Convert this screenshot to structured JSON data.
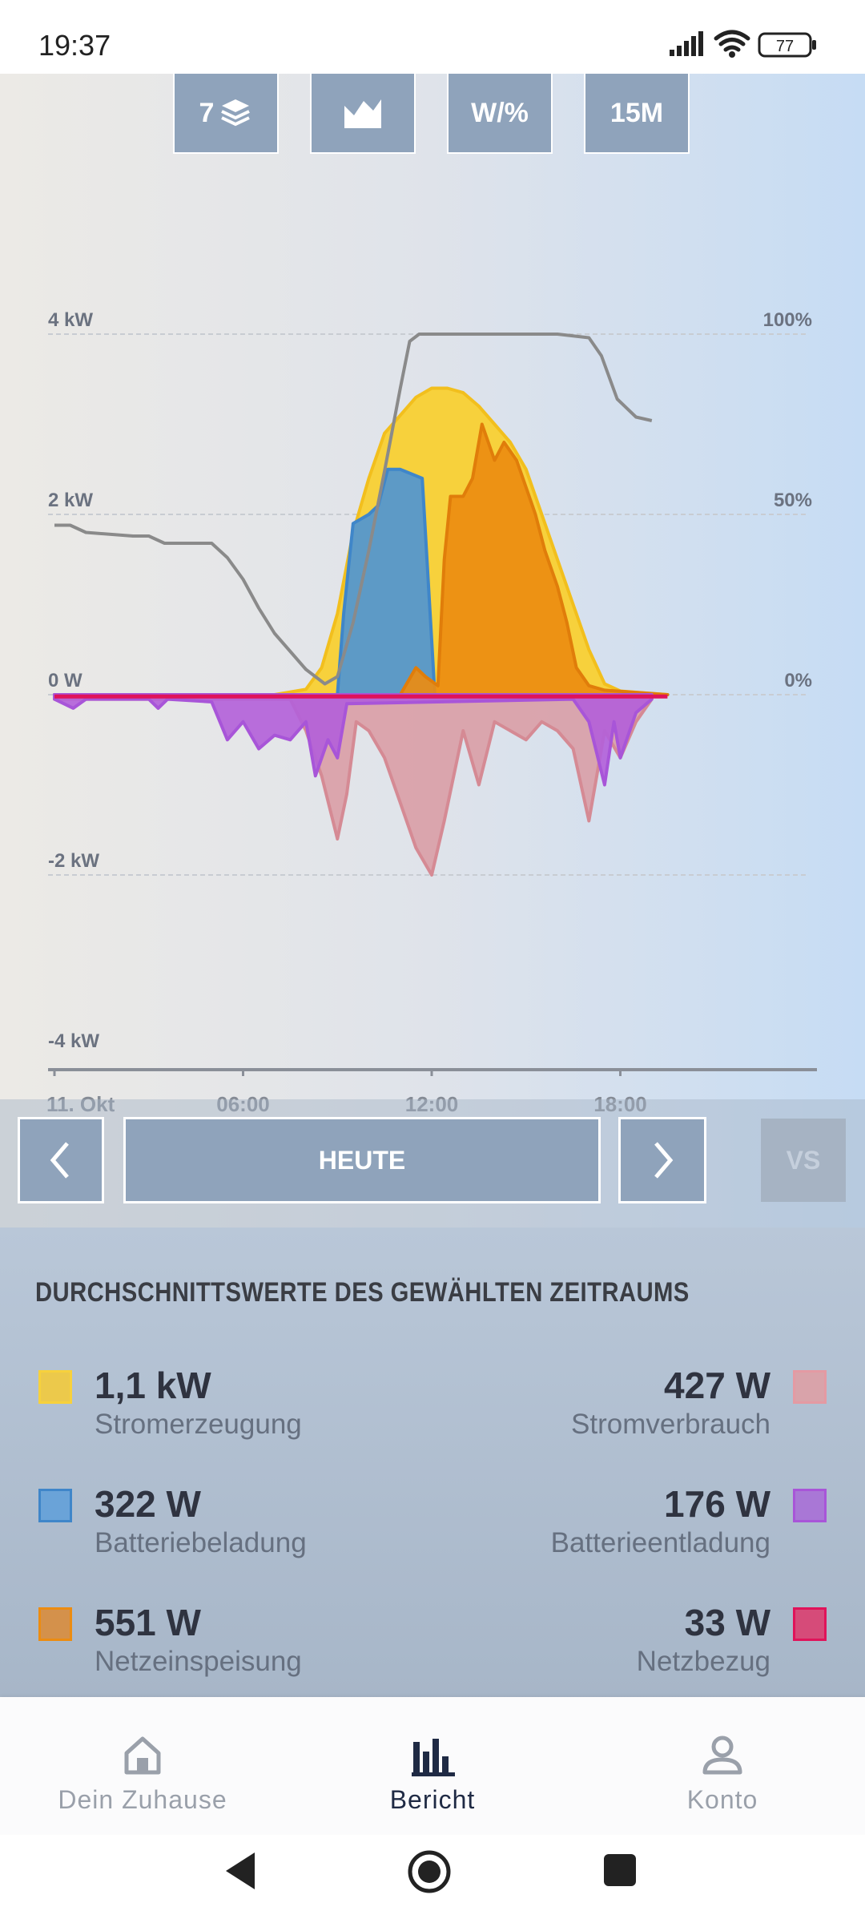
{
  "status_bar": {
    "time": "19:37",
    "battery": "77"
  },
  "toolbar": {
    "layers_count": "7",
    "unit_label": "W/%",
    "interval_label": "15M",
    "layers_icon": "layers-icon",
    "area_chart_icon": "area-chart-icon"
  },
  "chart_data": {
    "type": "area",
    "x_tick_labels": [
      "11. Okt",
      "06:00",
      "12:00",
      "18:00"
    ],
    "y_left_tick_labels": [
      "4 kW",
      "2 kW",
      "0 W",
      "-2 kW",
      "-4 kW"
    ],
    "y_right_tick_labels": [
      "100%",
      "50%",
      "0%"
    ],
    "x_range_hours": [
      0,
      24
    ],
    "y_left_range_w": [
      -4000,
      4000
    ],
    "y_right_range_pct": [
      0,
      100
    ],
    "grid": true,
    "series": [
      {
        "name": "Stromerzeugung",
        "color": "#f7d13c",
        "values_w": [
          [
            0,
            0
          ],
          [
            7,
            0
          ],
          [
            8,
            60
          ],
          [
            8.5,
            300
          ],
          [
            9,
            900
          ],
          [
            9.5,
            1800
          ],
          [
            10,
            2400
          ],
          [
            10.5,
            2900
          ],
          [
            11,
            3100
          ],
          [
            11.5,
            3300
          ],
          [
            12,
            3400
          ],
          [
            12.5,
            3400
          ],
          [
            13,
            3350
          ],
          [
            13.5,
            3200
          ],
          [
            14,
            3000
          ],
          [
            14.5,
            2800
          ],
          [
            15,
            2500
          ],
          [
            15.5,
            2000
          ],
          [
            16,
            1500
          ],
          [
            16.5,
            1000
          ],
          [
            17,
            500
          ],
          [
            17.5,
            120
          ],
          [
            18,
            40
          ],
          [
            19.5,
            0
          ]
        ]
      },
      {
        "name": "Batteriebeladung",
        "color": "#5b9bd1",
        "values_w": [
          [
            0,
            0
          ],
          [
            9,
            0
          ],
          [
            9.2,
            900
          ],
          [
            9.5,
            1900
          ],
          [
            10,
            2000
          ],
          [
            10.3,
            2100
          ],
          [
            10.6,
            2500
          ],
          [
            11,
            2500
          ],
          [
            11.7,
            2400
          ],
          [
            12,
            600
          ],
          [
            12.1,
            0
          ],
          [
            19.5,
            0
          ]
        ]
      },
      {
        "name": "Netzeinspeisung",
        "color": "#ec8c11",
        "values_w": [
          [
            0,
            0
          ],
          [
            11,
            0
          ],
          [
            11.5,
            300
          ],
          [
            11.8,
            200
          ],
          [
            12.2,
            100
          ],
          [
            12.4,
            1500
          ],
          [
            12.6,
            2200
          ],
          [
            13,
            2200
          ],
          [
            13.3,
            2400
          ],
          [
            13.6,
            3000
          ],
          [
            14,
            2600
          ],
          [
            14.3,
            2800
          ],
          [
            14.7,
            2600
          ],
          [
            15,
            2300
          ],
          [
            15.3,
            2000
          ],
          [
            15.6,
            1600
          ],
          [
            16,
            1200
          ],
          [
            16.3,
            800
          ],
          [
            16.6,
            300
          ],
          [
            17,
            100
          ],
          [
            17.5,
            50
          ],
          [
            19.5,
            0
          ]
        ]
      },
      {
        "name": "Stromverbrauch",
        "color": "#e49aa3",
        "values_w": [
          [
            0,
            -50
          ],
          [
            7.5,
            -50
          ],
          [
            8,
            -400
          ],
          [
            8.5,
            -900
          ],
          [
            9,
            -1600
          ],
          [
            9.3,
            -1100
          ],
          [
            9.6,
            -300
          ],
          [
            10,
            -400
          ],
          [
            10.5,
            -700
          ],
          [
            11,
            -1200
          ],
          [
            11.5,
            -1700
          ],
          [
            12,
            -2000
          ],
          [
            12.4,
            -1400
          ],
          [
            13,
            -400
          ],
          [
            13.5,
            -1000
          ],
          [
            14,
            -300
          ],
          [
            14.5,
            -400
          ],
          [
            15,
            -500
          ],
          [
            15.5,
            -300
          ],
          [
            16,
            -400
          ],
          [
            16.5,
            -600
          ],
          [
            17,
            -1400
          ],
          [
            17.5,
            -400
          ],
          [
            18,
            -700
          ],
          [
            18.5,
            -300
          ],
          [
            19,
            -50
          ]
        ]
      },
      {
        "name": "Batterieentladung",
        "color": "#a855d8",
        "values_w": [
          [
            0,
            -50
          ],
          [
            0.6,
            -150
          ],
          [
            1,
            -50
          ],
          [
            3,
            -50
          ],
          [
            3.3,
            -150
          ],
          [
            3.6,
            -50
          ],
          [
            5,
            -80
          ],
          [
            5.5,
            -500
          ],
          [
            6,
            -300
          ],
          [
            6.5,
            -600
          ],
          [
            7,
            -450
          ],
          [
            7.5,
            -500
          ],
          [
            8,
            -300
          ],
          [
            8.3,
            -900
          ],
          [
            8.7,
            -500
          ],
          [
            9,
            -700
          ],
          [
            9.3,
            -100
          ],
          [
            16.5,
            -50
          ],
          [
            17,
            -300
          ],
          [
            17.5,
            -1000
          ],
          [
            17.8,
            -300
          ],
          [
            18,
            -700
          ],
          [
            18.5,
            -200
          ],
          [
            19,
            -50
          ]
        ]
      },
      {
        "name": "Netzbezug",
        "color": "#e0135a",
        "values_w": [
          [
            0,
            -20
          ],
          [
            19.5,
            -20
          ]
        ]
      },
      {
        "name": "Batterieladestand",
        "color": "#8a8a8a",
        "unit": "%",
        "values_pct": [
          [
            0,
            47
          ],
          [
            0.5,
            47
          ],
          [
            1,
            45
          ],
          [
            2.5,
            44
          ],
          [
            3,
            44
          ],
          [
            3.5,
            42
          ],
          [
            5,
            42
          ],
          [
            5.5,
            38
          ],
          [
            6,
            32
          ],
          [
            6.5,
            24
          ],
          [
            7,
            17
          ],
          [
            7.5,
            12
          ],
          [
            8,
            7
          ],
          [
            8.6,
            3
          ],
          [
            9,
            5
          ],
          [
            9.5,
            20
          ],
          [
            10,
            40
          ],
          [
            10.5,
            62
          ],
          [
            11,
            85
          ],
          [
            11.3,
            98
          ],
          [
            11.6,
            100
          ],
          [
            16,
            100
          ],
          [
            17,
            99
          ],
          [
            17.4,
            94
          ],
          [
            17.9,
            82
          ],
          [
            18.5,
            77
          ],
          [
            19,
            76
          ]
        ]
      }
    ]
  },
  "date_nav": {
    "period_label": "HEUTE",
    "vs_label": "VS"
  },
  "stats": {
    "title": "DURCHSCHNITTSWERTE DES GEWÄHLTEN ZEITRAUMS",
    "items": [
      {
        "value": "1,1 kW",
        "label": "Stromerzeugung",
        "color": "#ecc94b",
        "border": "#f7d13c"
      },
      {
        "value": "427 W",
        "label": "Stromverbrauch",
        "color": "#d9a3aa",
        "border": "#e49aa3"
      },
      {
        "value": "322 W",
        "label": "Batteriebeladung",
        "color": "#6aa3d8",
        "border": "#3f86c9"
      },
      {
        "value": "176 W",
        "label": "Batterieentladung",
        "color": "#a977d6",
        "border": "#a855d8"
      },
      {
        "value": "551 W",
        "label": "Netzeinspeisung",
        "color": "#d4914b",
        "border": "#ec8c11"
      },
      {
        "value": "33 W",
        "label": "Netzbezug",
        "color": "#d64b79",
        "border": "#e0135a"
      }
    ]
  },
  "bottom_nav": {
    "items": [
      {
        "label": "Dein Zuhause",
        "icon": "home-icon",
        "active": false
      },
      {
        "label": "Bericht",
        "icon": "bar-chart-icon",
        "active": true
      },
      {
        "label": "Konto",
        "icon": "person-icon",
        "active": false
      }
    ]
  }
}
